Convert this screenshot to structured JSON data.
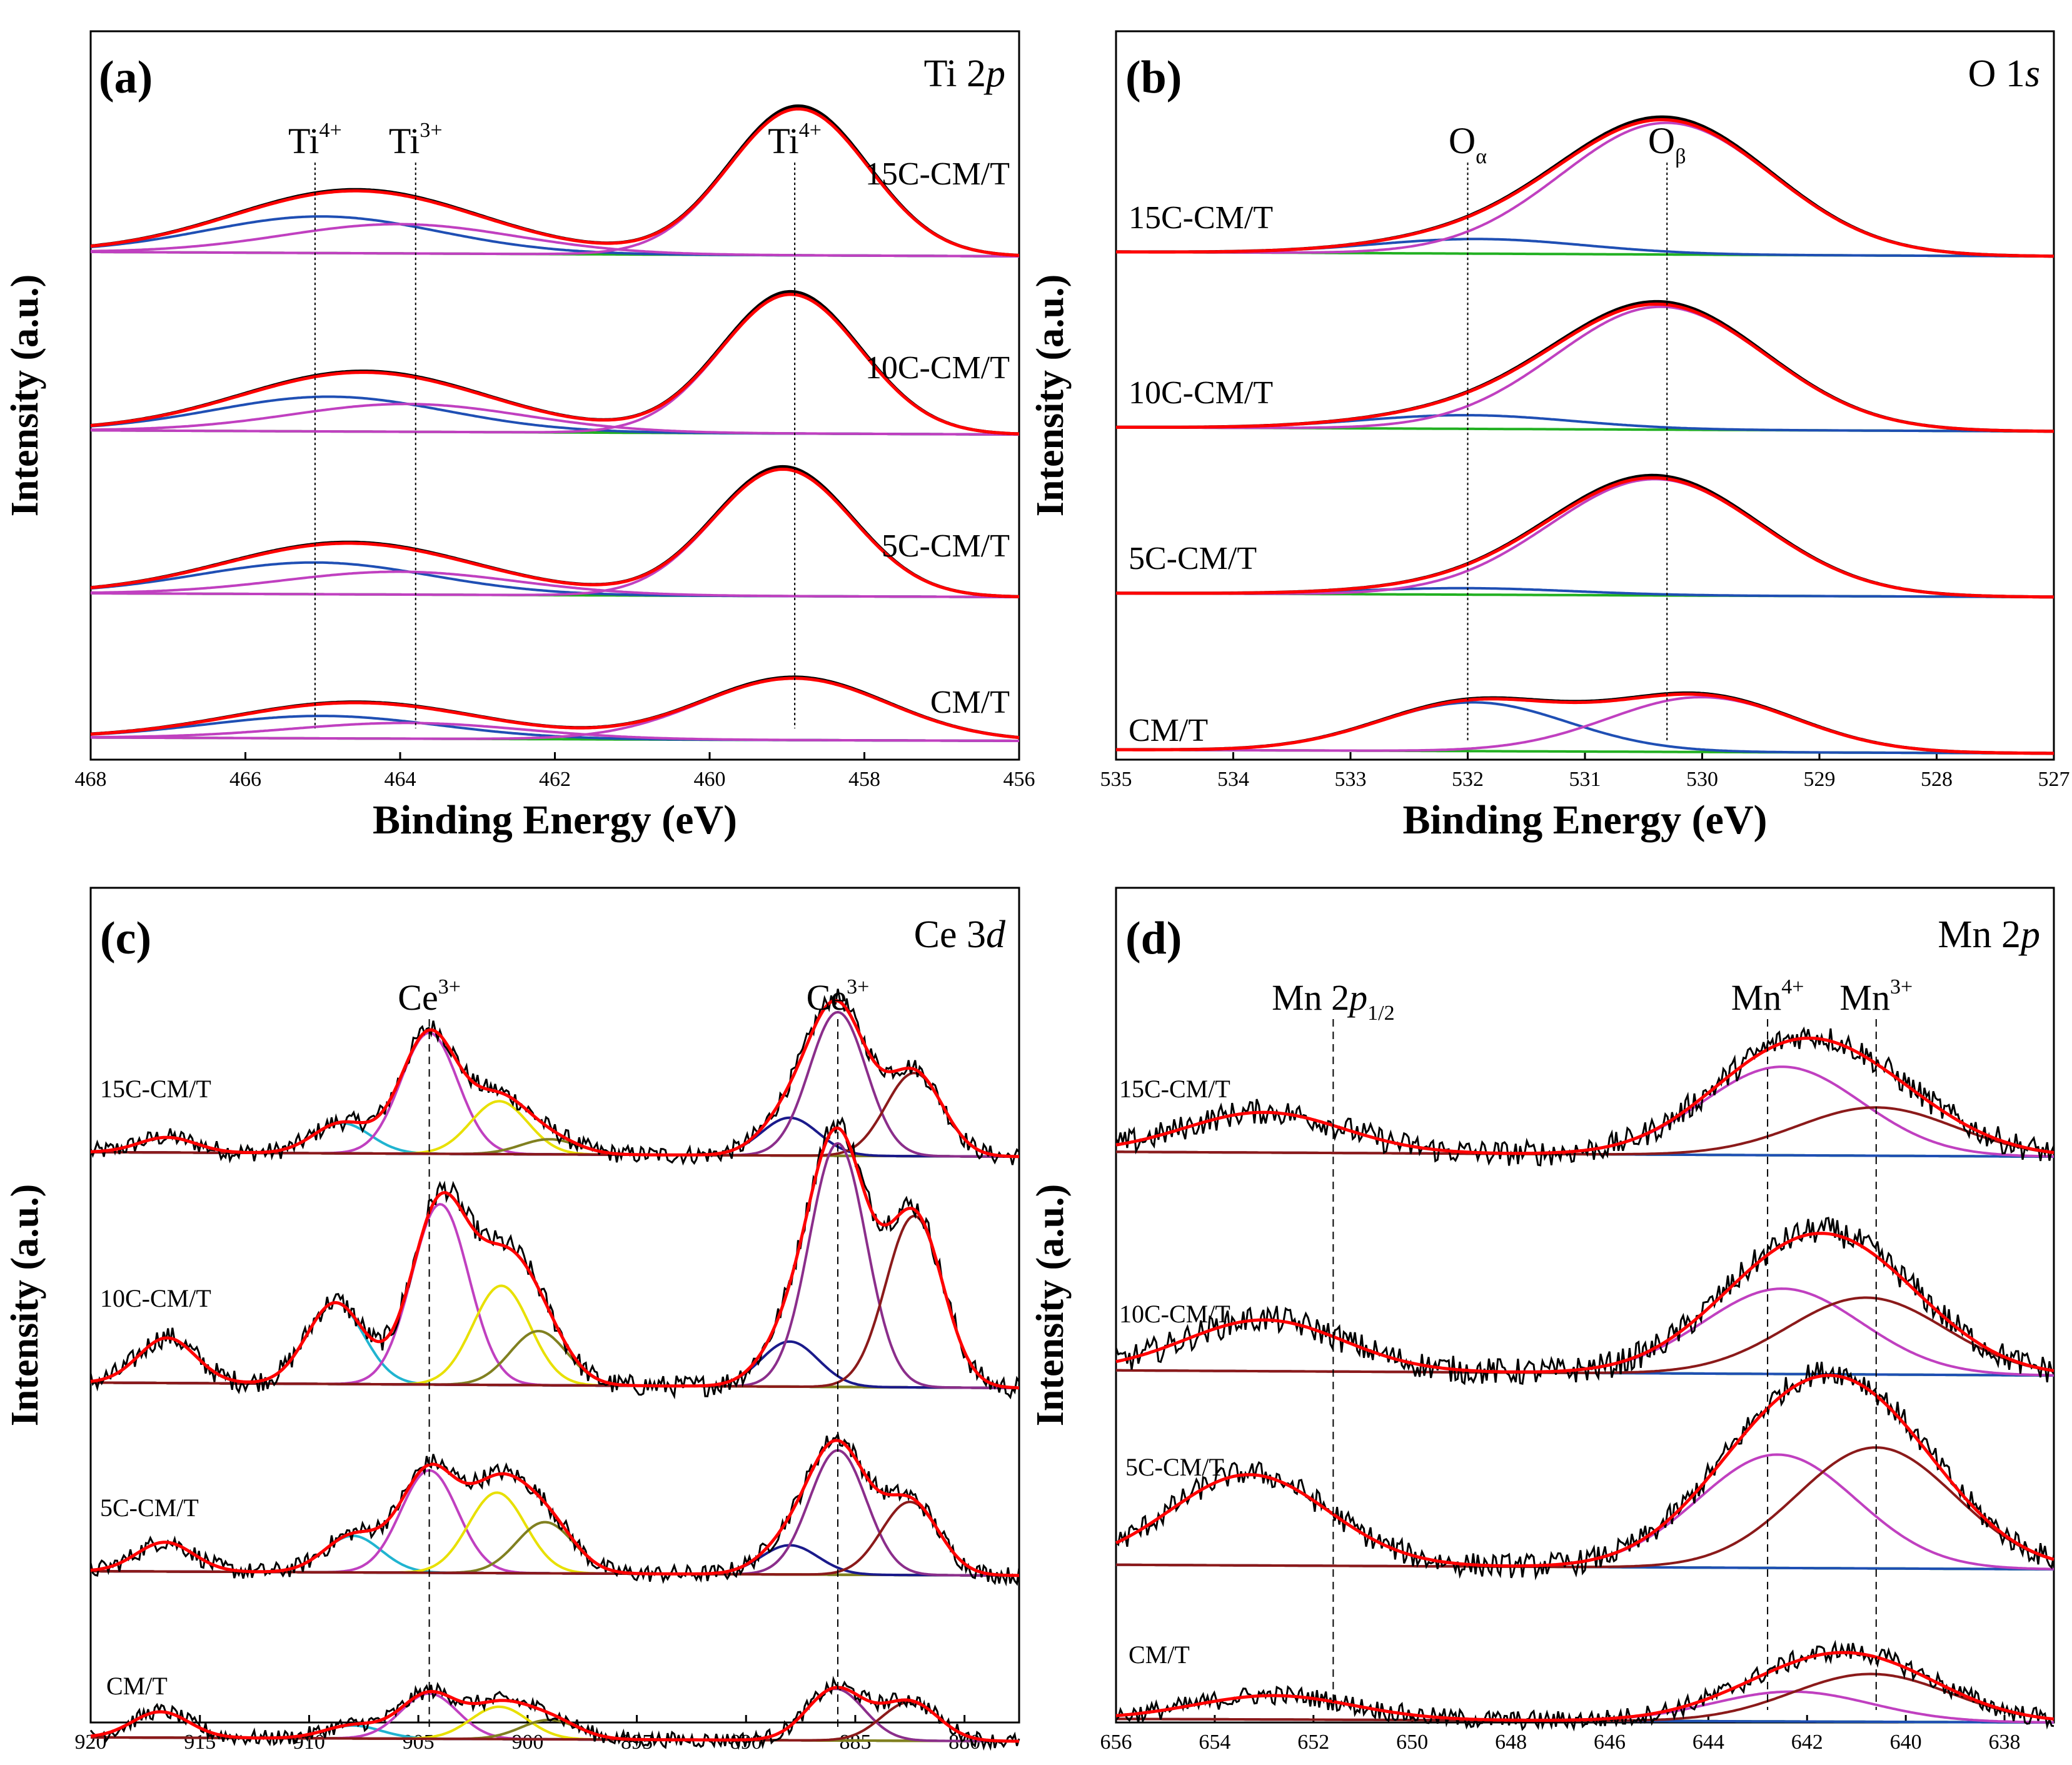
{
  "colors": {
    "black": "#000000",
    "red": "#ff0000",
    "blue": "#1f4fb4",
    "magenta": "#c040c0",
    "pink": "#e060e0",
    "green": "#22b022",
    "darkred": "#8b1a1a",
    "purple": "#8b2e8b",
    "yellow": "#e8e000",
    "cyan": "#20b4d0",
    "olive": "#808020",
    "navy": "#1a1a8b"
  },
  "chart_data": [
    {
      "id": "a",
      "type": "line",
      "panel_label": "(a)",
      "title": "Ti 2",
      "title_italic": "p",
      "xlabel": "Binding Energy (eV)",
      "ylabel": "Intensity (a.u.)",
      "xlim": [
        468,
        456
      ],
      "xticks": [
        468,
        466,
        464,
        462,
        460,
        458,
        456
      ],
      "noise": 0,
      "annotations": [
        {
          "base": "Ti",
          "sup": "4+",
          "x": 465.1
        },
        {
          "base": "Ti",
          "sup": "3+",
          "x": 463.8
        },
        {
          "base": "Ti",
          "sup": "4+",
          "x": 458.9
        }
      ],
      "samples": [
        {
          "name": "15C-CM/T",
          "peaks": [
            {
              "color": "blue",
              "center": 465.0,
              "height": 0.25,
              "width": 1.5
            },
            {
              "color": "magenta",
              "center": 464.0,
              "height": 0.2,
              "width": 1.5
            },
            {
              "color": "black",
              "center": 458.85,
              "height": 1.0,
              "width": 0.9
            }
          ]
        },
        {
          "name": "10C-CM/T",
          "peaks": [
            {
              "color": "blue",
              "center": 464.9,
              "height": 0.25,
              "width": 1.5
            },
            {
              "color": "magenta",
              "center": 463.9,
              "height": 0.2,
              "width": 1.5
            },
            {
              "color": "black",
              "center": 458.95,
              "height": 1.0,
              "width": 0.9
            }
          ]
        },
        {
          "name": "5C-CM/T",
          "peaks": [
            {
              "color": "blue",
              "center": 465.1,
              "height": 0.25,
              "width": 1.5
            },
            {
              "color": "magenta",
              "center": 464.0,
              "height": 0.18,
              "width": 1.5
            },
            {
              "color": "black",
              "center": 459.05,
              "height": 1.0,
              "width": 0.9
            }
          ]
        },
        {
          "name": "CM/T",
          "peaks": [
            {
              "color": "blue",
              "center": 465.0,
              "height": 0.2,
              "width": 1.5
            },
            {
              "color": "magenta",
              "center": 463.9,
              "height": 0.14,
              "width": 1.5
            },
            {
              "color": "black",
              "center": 458.9,
              "height": 0.55,
              "width": 1.2
            }
          ]
        }
      ]
    },
    {
      "id": "b",
      "type": "line",
      "panel_label": "(b)",
      "title": "O 1",
      "title_italic": "s",
      "xlabel": "Binding Energy (eV)",
      "ylabel": "Intensity (a.u.)",
      "xlim": [
        535,
        527
      ],
      "xticks": [
        535,
        534,
        533,
        532,
        531,
        530,
        529,
        528,
        527
      ],
      "noise": 0,
      "annotations": [
        {
          "base": "O",
          "sub": "α",
          "x": 532.0
        },
        {
          "base": "O",
          "sub": "β",
          "x": 530.3
        }
      ],
      "samples": [
        {
          "name": "15C-CM/T",
          "peaks": [
            {
              "color": "blue",
              "center": 531.9,
              "height": 0.1,
              "width": 0.9
            },
            {
              "color": "magenta",
              "center": 530.3,
              "height": 0.9,
              "width": 0.9
            }
          ]
        },
        {
          "name": "10C-CM/T",
          "peaks": [
            {
              "color": "blue",
              "center": 532.0,
              "height": 0.1,
              "width": 0.9
            },
            {
              "color": "magenta",
              "center": 530.35,
              "height": 0.9,
              "width": 0.9
            }
          ]
        },
        {
          "name": "5C-CM/T",
          "peaks": [
            {
              "color": "blue",
              "center": 532.0,
              "height": 0.05,
              "width": 0.9
            },
            {
              "color": "magenta",
              "center": 530.4,
              "height": 0.9,
              "width": 0.9
            }
          ]
        },
        {
          "name": "CM/T",
          "peaks": [
            {
              "color": "blue",
              "center": 531.95,
              "height": 0.4,
              "width": 0.8
            },
            {
              "color": "magenta",
              "center": 530.0,
              "height": 0.45,
              "width": 0.8
            }
          ]
        }
      ]
    },
    {
      "id": "c",
      "type": "line",
      "panel_label": "(c)",
      "title": "Ce 3",
      "title_italic": "d",
      "xlabel": "Binding Energy (eV)",
      "ylabel": "Intensity (a.u.)",
      "xlim": [
        920,
        877.5
      ],
      "xticks": [
        920,
        915,
        910,
        905,
        900,
        895,
        890,
        885,
        880
      ],
      "noise": 0.06,
      "annotations": [
        {
          "base": "Ce",
          "sup": "3+",
          "x": 904.5
        },
        {
          "base": "Ce",
          "sup": "3+",
          "x": 885.8
        }
      ],
      "samples": [
        {
          "name": "15C-CM/T",
          "peaks": [
            {
              "color": "blue",
              "center": 916.5,
              "height": 0.1,
              "width": 1.3
            },
            {
              "color": "cyan",
              "center": 908.5,
              "height": 0.2,
              "width": 1.3
            },
            {
              "color": "magenta",
              "center": 904.5,
              "height": 0.8,
              "width": 1.3
            },
            {
              "color": "yellow",
              "center": 901.3,
              "height": 0.35,
              "width": 1.3
            },
            {
              "color": "olive",
              "center": 899.0,
              "height": 0.1,
              "width": 1.3
            },
            {
              "color": "navy",
              "center": 888.0,
              "height": 0.25,
              "width": 1.3
            },
            {
              "color": "purple",
              "center": 885.8,
              "height": 0.95,
              "width": 1.3
            },
            {
              "color": "darkred",
              "center": 882.3,
              "height": 0.55,
              "width": 1.3
            }
          ]
        },
        {
          "name": "10C-CM/T",
          "peaks": [
            {
              "color": "blue",
              "center": 916.5,
              "height": 0.25,
              "width": 1.3
            },
            {
              "color": "cyan",
              "center": 908.8,
              "height": 0.45,
              "width": 1.3
            },
            {
              "color": "magenta",
              "center": 904.0,
              "height": 1.0,
              "width": 1.3
            },
            {
              "color": "yellow",
              "center": 901.2,
              "height": 0.55,
              "width": 1.3
            },
            {
              "color": "olive",
              "center": 899.5,
              "height": 0.3,
              "width": 1.3
            },
            {
              "color": "navy",
              "center": 888.0,
              "height": 0.25,
              "width": 1.3
            },
            {
              "color": "purple",
              "center": 885.8,
              "height": 1.35,
              "width": 1.3
            },
            {
              "color": "darkred",
              "center": 882.3,
              "height": 0.95,
              "width": 1.3
            }
          ]
        },
        {
          "name": "5C-CM/T",
          "peaks": [
            {
              "color": "blue",
              "center": 916.6,
              "height": 0.2,
              "width": 1.3
            },
            {
              "color": "cyan",
              "center": 908.0,
              "height": 0.25,
              "width": 1.3
            },
            {
              "color": "magenta",
              "center": 904.5,
              "height": 0.7,
              "width": 1.3
            },
            {
              "color": "yellow",
              "center": 901.4,
              "height": 0.55,
              "width": 1.3
            },
            {
              "color": "olive",
              "center": 899.2,
              "height": 0.35,
              "width": 1.3
            },
            {
              "color": "navy",
              "center": 888.0,
              "height": 0.2,
              "width": 1.3
            },
            {
              "color": "purple",
              "center": 885.8,
              "height": 0.85,
              "width": 1.3
            },
            {
              "color": "darkred",
              "center": 882.5,
              "height": 0.5,
              "width": 1.3
            }
          ]
        },
        {
          "name": "CM/T",
          "peaks": [
            {
              "color": "blue",
              "center": 916.8,
              "height": 0.2,
              "width": 1.3
            },
            {
              "color": "cyan",
              "center": 908.0,
              "height": 0.1,
              "width": 1.3
            },
            {
              "color": "magenta",
              "center": 904.5,
              "height": 0.35,
              "width": 1.3
            },
            {
              "color": "yellow",
              "center": 901.3,
              "height": 0.25,
              "width": 1.3
            },
            {
              "color": "olive",
              "center": 899.0,
              "height": 0.15,
              "width": 1.3
            },
            {
              "color": "purple",
              "center": 885.9,
              "height": 0.4,
              "width": 1.3
            },
            {
              "color": "darkred",
              "center": 882.5,
              "height": 0.3,
              "width": 1.3
            }
          ]
        }
      ]
    },
    {
      "id": "d",
      "type": "line",
      "panel_label": "(d)",
      "title": "Mn 2",
      "title_italic": "p",
      "xlabel": "Binding Energy (eV)",
      "ylabel": "Intensity (a.u.)",
      "xlim": [
        656,
        637
      ],
      "xticks": [
        656,
        654,
        652,
        650,
        648,
        646,
        644,
        642,
        640,
        638
      ],
      "noise": 0.08,
      "annotations": [
        {
          "base": "Mn 2",
          "italic": "p",
          "sub": "1/2",
          "x": 651.6
        },
        {
          "base": "Mn",
          "sup": "4+",
          "x": 642.8
        },
        {
          "base": "Mn",
          "sup": "3+",
          "x": 640.6
        }
      ],
      "samples": [
        {
          "name": "15C-CM/T",
          "peaks": [
            {
              "color": "blue",
              "center": 653.0,
              "height": 0.25,
              "width": 1.6
            },
            {
              "color": "magenta",
              "center": 642.5,
              "height": 0.55,
              "width": 1.6
            },
            {
              "color": "darkred",
              "center": 640.6,
              "height": 0.3,
              "width": 1.6
            }
          ]
        },
        {
          "name": "10C-CM/T",
          "peaks": [
            {
              "color": "blue",
              "center": 653.0,
              "height": 0.3,
              "width": 1.6
            },
            {
              "color": "magenta",
              "center": 642.5,
              "height": 0.5,
              "width": 1.6
            },
            {
              "color": "darkred",
              "center": 640.8,
              "height": 0.45,
              "width": 1.6
            }
          ]
        },
        {
          "name": "5C-CM/T",
          "peaks": [
            {
              "color": "blue",
              "center": 653.3,
              "height": 0.6,
              "width": 1.6
            },
            {
              "color": "magenta",
              "center": 642.6,
              "height": 0.75,
              "width": 1.6
            },
            {
              "color": "darkred",
              "center": 640.6,
              "height": 0.8,
              "width": 1.6
            }
          ]
        },
        {
          "name": "CM/T",
          "peaks": [
            {
              "color": "blue",
              "center": 652.8,
              "height": 0.2,
              "width": 1.6
            },
            {
              "color": "magenta",
              "center": 642.3,
              "height": 0.25,
              "width": 1.6
            },
            {
              "color": "darkred",
              "center": 640.7,
              "height": 0.4,
              "width": 1.6
            }
          ]
        }
      ]
    }
  ]
}
